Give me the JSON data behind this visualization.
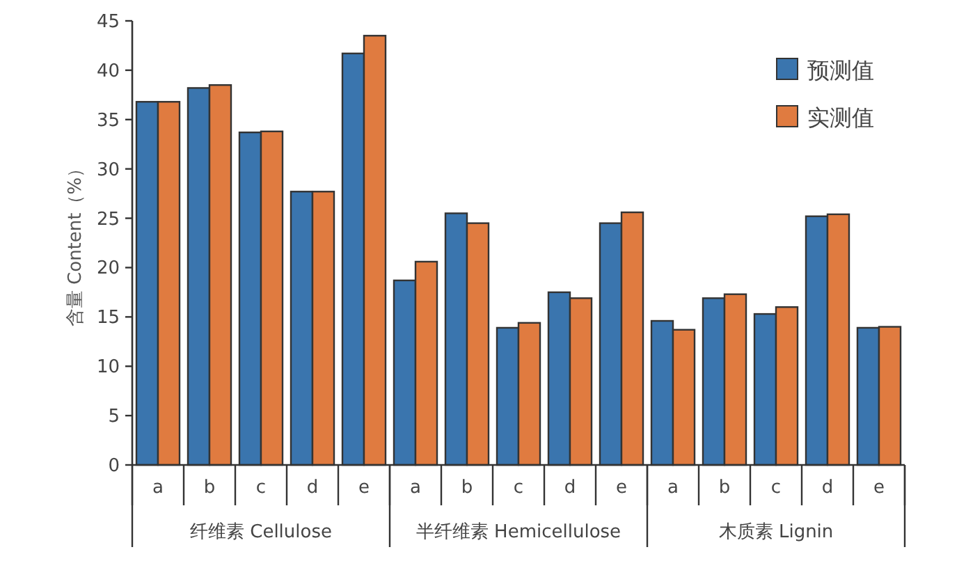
{
  "chart_data": {
    "type": "bar",
    "ylabel": "含量 Content（%）",
    "categories": [
      "a",
      "b",
      "c",
      "d",
      "e",
      "a",
      "b",
      "c",
      "d",
      "e",
      "a",
      "b",
      "c",
      "d",
      "e"
    ],
    "series": [
      {
        "name": "预测值",
        "color": "#3a75ae",
        "values": [
          36.8,
          38.2,
          33.7,
          27.7,
          41.7,
          18.7,
          25.5,
          13.9,
          17.5,
          24.5,
          14.6,
          16.9,
          15.3,
          25.2,
          13.9
        ]
      },
      {
        "name": "实测值",
        "color": "#e07b40",
        "values": [
          36.8,
          38.5,
          33.8,
          27.7,
          43.5,
          20.6,
          24.5,
          14.4,
          16.9,
          25.6,
          13.7,
          17.3,
          16.0,
          25.4,
          14.0
        ]
      }
    ],
    "annotations": [
      "纤维素 Cellulose",
      "半纤维素 Hemicellulose",
      "木质素 Lignin"
    ],
    "ylim": [
      0,
      45
    ],
    "yticks": [
      0,
      5,
      10,
      15,
      20,
      25,
      30,
      35,
      40,
      45
    ],
    "grid": false,
    "legend": "top right"
  }
}
